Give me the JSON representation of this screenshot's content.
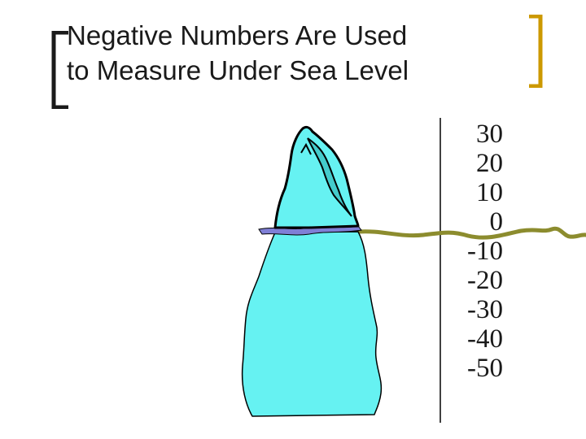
{
  "slide": {
    "title_line1": "Negative Numbers Are Used",
    "title_line2": "to Measure Under Sea Level"
  },
  "scale": {
    "labels": [
      "30",
      "20",
      "10",
      "0",
      "-10",
      "-20",
      "-30",
      "-40",
      "-50"
    ]
  },
  "colors": {
    "ice": "#66f2f2",
    "ice_peak": "#80e8e8",
    "outline": "#000000",
    "water": "#8c8c2e",
    "waterline": "#7f7fd6",
    "bracket_left": "#1a1a1a",
    "bracket_right": "#cc9900"
  },
  "icons": {
    "iceberg": "iceberg-icon",
    "water": "sea-surface-wave"
  }
}
